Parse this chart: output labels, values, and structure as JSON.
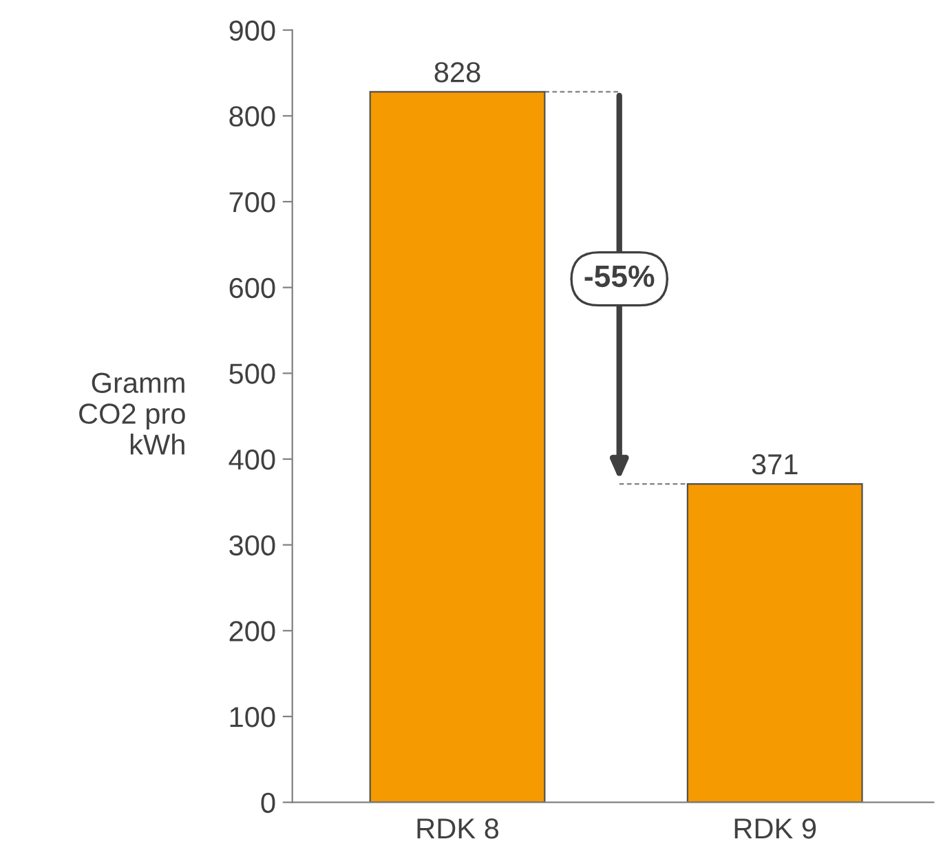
{
  "chart_data": {
    "type": "bar",
    "categories": [
      "RDK 8",
      "RDK 9"
    ],
    "values": [
      828,
      371
    ],
    "color": "#f59a00",
    "ylabel": "Gramm\nCO2 pro\nkWh",
    "ylim": [
      0,
      900
    ],
    "yticks": [
      0,
      100,
      200,
      300,
      400,
      500,
      600,
      700,
      800,
      900
    ],
    "data_labels": true,
    "grid": false,
    "ref_lines": [
      {
        "axis": "y",
        "value": 828,
        "color": "#808080",
        "line_style": "dashed"
      },
      {
        "axis": "y",
        "value": 371,
        "color": "#808080",
        "line_style": "dashed"
      }
    ],
    "annotations": [
      "-55%"
    ]
  }
}
